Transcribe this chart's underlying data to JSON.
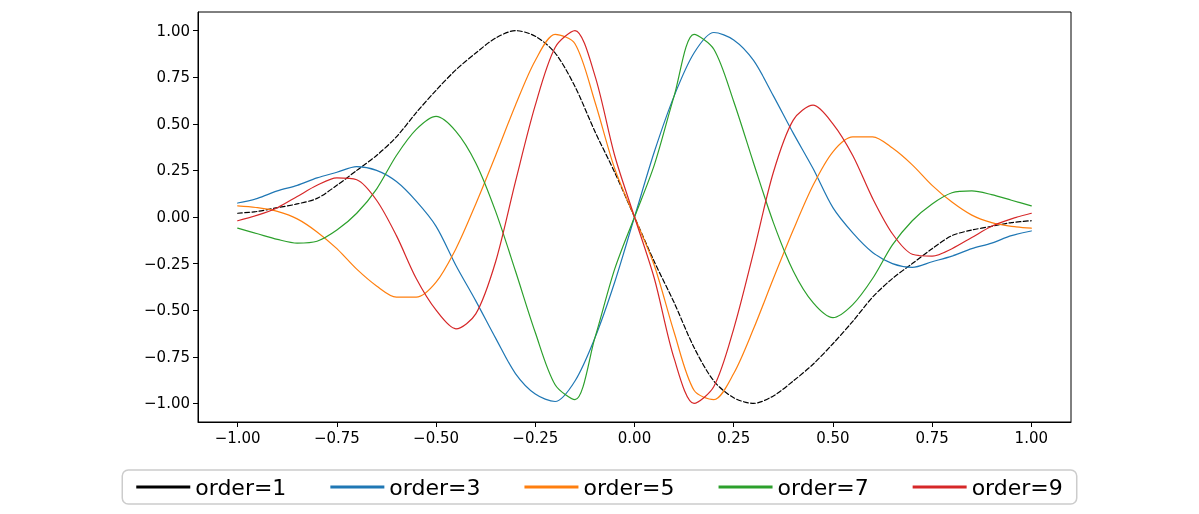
{
  "chart_data": {
    "type": "line",
    "x": [
      -1,
      -0.95,
      -0.9,
      -0.85,
      -0.8,
      -0.75,
      -0.7,
      -0.65,
      -0.6,
      -0.55,
      -0.5,
      -0.45,
      -0.4,
      -0.35,
      -0.3,
      -0.25,
      -0.2,
      -0.15,
      -0.1,
      -0.05,
      0,
      0.05,
      0.1,
      0.15,
      0.2,
      0.25,
      0.3,
      0.35,
      0.4,
      0.45,
      0.5,
      0.55,
      0.6,
      0.65,
      0.7,
      0.75,
      0.8,
      0.85,
      0.9,
      0.95,
      1
    ],
    "xlim": [
      -1.1,
      1.1
    ],
    "xticks": [
      {
        "value": -1,
        "label": "−1.00"
      },
      {
        "value": -0.75,
        "label": "−0.75"
      },
      {
        "value": -0.5,
        "label": "−0.50"
      },
      {
        "value": -0.25,
        "label": "−0.25"
      },
      {
        "value": 0,
        "label": "0.00"
      },
      {
        "value": 0.25,
        "label": "0.25"
      },
      {
        "value": 0.5,
        "label": "0.50"
      },
      {
        "value": 0.75,
        "label": "0.75"
      },
      {
        "value": 1,
        "label": "1.00"
      }
    ],
    "ylim": [
      -1.1,
      1.1
    ],
    "yticks": [
      {
        "value": -1,
        "label": "−1.00"
      },
      {
        "value": -0.75,
        "label": "−0.75"
      },
      {
        "value": -0.5,
        "label": "−0.50"
      },
      {
        "value": -0.25,
        "label": "−0.25"
      },
      {
        "value": 0,
        "label": "0.00"
      },
      {
        "value": 0.25,
        "label": "0.25"
      },
      {
        "value": 0.5,
        "label": "0.50"
      },
      {
        "value": 0.75,
        "label": "0.75"
      },
      {
        "value": 1,
        "label": "1.00"
      }
    ],
    "grid": false,
    "legend": "bottom",
    "marker": "none",
    "series": [
      {
        "name": "order=1",
        "color": "#000000",
        "line_style": "dashed",
        "values": [
          0.02,
          0.03,
          0.05,
          0.07,
          0.1,
          0.17,
          0.25,
          0.33,
          0.43,
          0.56,
          0.68,
          0.79,
          0.88,
          0.96,
          1,
          0.97,
          0.88,
          0.7,
          0.46,
          0.24,
          0,
          -0.24,
          -0.46,
          -0.7,
          -0.88,
          -0.97,
          -1,
          -0.96,
          -0.88,
          -0.79,
          -0.68,
          -0.56,
          -0.43,
          -0.33,
          -0.25,
          -0.17,
          -0.1,
          -0.07,
          -0.05,
          -0.03,
          -0.02
        ]
      },
      {
        "name": "order=3",
        "color": "#1f77b4",
        "line_style": "solid",
        "values": [
          0.075,
          0.1,
          0.14,
          0.17,
          0.21,
          0.24,
          0.27,
          0.25,
          0.19,
          0.085,
          -0.05,
          -0.26,
          -0.45,
          -0.65,
          -0.84,
          -0.95,
          -0.99,
          -0.88,
          -0.65,
          -0.35,
          0,
          0.35,
          0.65,
          0.88,
          0.99,
          0.95,
          0.84,
          0.65,
          0.45,
          0.26,
          0.05,
          -0.085,
          -0.19,
          -0.25,
          -0.27,
          -0.24,
          -0.21,
          -0.17,
          -0.14,
          -0.1,
          -0.075
        ]
      },
      {
        "name": "order=5",
        "color": "#ff7f0e",
        "line_style": "solid",
        "values": [
          0.06,
          0.05,
          0.03,
          -0.01,
          -0.08,
          -0.17,
          -0.28,
          -0.37,
          -0.43,
          -0.43,
          -0.35,
          -0.17,
          0.07,
          0.33,
          0.6,
          0.84,
          0.98,
          0.93,
          0.62,
          0.26,
          0,
          -0.26,
          -0.62,
          -0.93,
          -0.98,
          -0.84,
          -0.6,
          -0.33,
          -0.07,
          0.17,
          0.35,
          0.43,
          0.43,
          0.37,
          0.28,
          0.17,
          0.08,
          0.01,
          -0.03,
          -0.05,
          -0.06
        ]
      },
      {
        "name": "order=7",
        "color": "#2ca02c",
        "line_style": "solid",
        "values": [
          -0.06,
          -0.09,
          -0.12,
          -0.14,
          -0.13,
          -0.07,
          0.02,
          0.15,
          0.33,
          0.47,
          0.54,
          0.46,
          0.29,
          0.03,
          -0.29,
          -0.62,
          -0.9,
          -0.98,
          -0.65,
          -0.28,
          0,
          0.28,
          0.65,
          0.98,
          0.9,
          0.62,
          0.29,
          -0.03,
          -0.29,
          -0.46,
          -0.54,
          -0.47,
          -0.33,
          -0.15,
          -0.02,
          0.07,
          0.13,
          0.14,
          0.12,
          0.09,
          0.06
        ]
      },
      {
        "name": "order=9",
        "color": "#d62728",
        "line_style": "solid",
        "values": [
          -0.02,
          0.01,
          0.05,
          0.11,
          0.17,
          0.21,
          0.2,
          0.09,
          -0.1,
          -0.33,
          -0.5,
          -0.6,
          -0.52,
          -0.24,
          0.19,
          0.6,
          0.91,
          1,
          0.76,
          0.33,
          0,
          -0.33,
          -0.76,
          -1,
          -0.91,
          -0.6,
          -0.19,
          0.24,
          0.52,
          0.6,
          0.5,
          0.33,
          0.1,
          -0.09,
          -0.2,
          -0.21,
          -0.17,
          -0.11,
          -0.05,
          -0.01,
          0.02
        ]
      }
    ]
  }
}
